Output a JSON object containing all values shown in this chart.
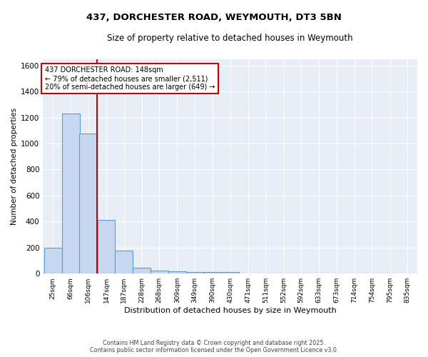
{
  "title": "437, DORCHESTER ROAD, WEYMOUTH, DT3 5BN",
  "subtitle": "Size of property relative to detached houses in Weymouth",
  "xlabel": "Distribution of detached houses by size in Weymouth",
  "ylabel": "Number of detached properties",
  "bins": [
    25,
    66,
    106,
    147,
    187,
    228,
    268,
    309,
    349,
    390,
    430,
    471,
    511,
    552,
    592,
    633,
    673,
    714,
    754,
    795,
    835
  ],
  "bar_heights": [
    200,
    1230,
    1075,
    415,
    175,
    45,
    25,
    15,
    10,
    10,
    10,
    0,
    0,
    0,
    0,
    0,
    0,
    0,
    0,
    0
  ],
  "bar_color": "#c5d8ef",
  "bar_edge_color": "#5b9bd5",
  "bg_color": "#e8eef6",
  "grid_color": "#ffffff",
  "red_line_x": 147,
  "ylim": [
    0,
    1650
  ],
  "yticks": [
    0,
    200,
    400,
    600,
    800,
    1000,
    1200,
    1400,
    1600
  ],
  "annotation_title": "437 DORCHESTER ROAD: 148sqm",
  "annotation_line1": "← 79% of detached houses are smaller (2,511)",
  "annotation_line2": "20% of semi-detached houses are larger (649) →",
  "footer1": "Contains HM Land Registry data © Crown copyright and database right 2025.",
  "footer2": "Contains public sector information licensed under the Open Government Licence v3.0."
}
